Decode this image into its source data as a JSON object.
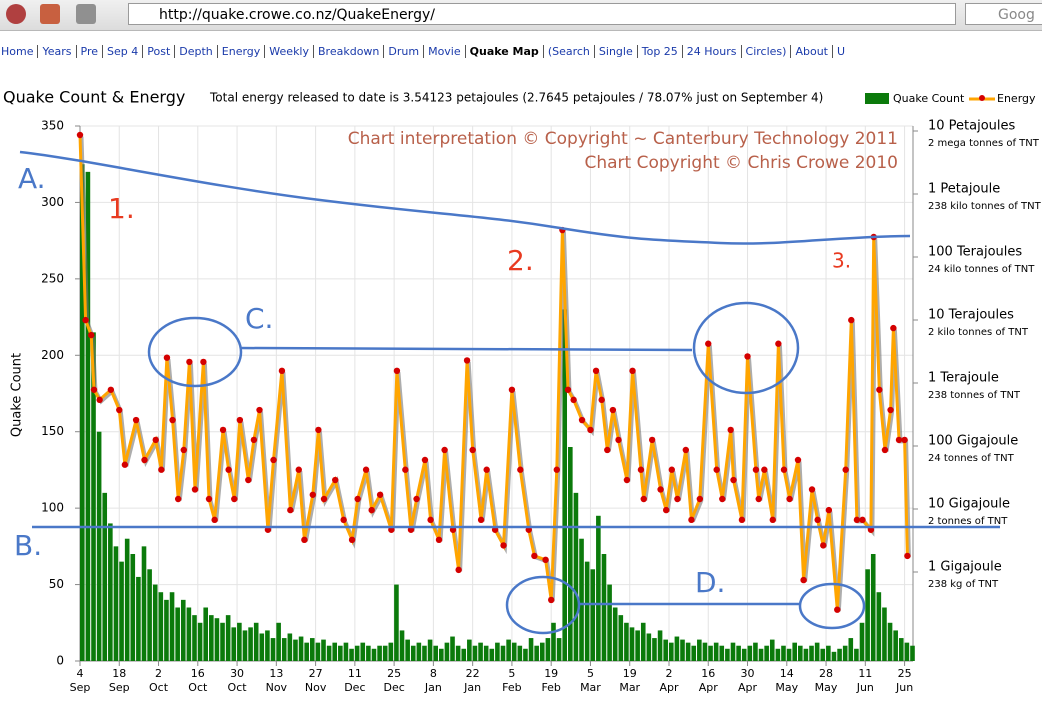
{
  "browser": {
    "url": "http://quake.crowe.co.nz/QuakeEnergy/",
    "search": "Goog",
    "nav": [
      "Home",
      "Years",
      "Pre",
      "Sep 4",
      "Post",
      "Depth",
      "Energy",
      "Weekly",
      "Breakdown",
      "Drum",
      "Movie",
      "Quake Map",
      "(Search",
      "Single",
      "Top 25",
      "24 Hours",
      "Circles)",
      "About",
      "U"
    ]
  },
  "chart_data": {
    "type": "combo",
    "title": "Quake Count & Energy",
    "subtitle": "Total energy released to date is 3.54123 petajoules (2.7645 petajoules / 78.07% just on September 4)",
    "ylabel": "Quake Count",
    "ylim": [
      0,
      350
    ],
    "yticks": [
      0,
      50,
      100,
      150,
      200,
      250,
      300,
      350
    ],
    "y2lim": [
      0.0322,
      10000000
    ],
    "y2log": true,
    "y2ticks": [
      {
        "value": 10000000,
        "label": "10 Petajoules",
        "note": "2 mega tonnes of TNT"
      },
      {
        "value": 1000000,
        "label": "1 Petajoule",
        "note": "238 kilo tonnes of TNT"
      },
      {
        "value": 100000,
        "label": "100 Terajoules",
        "note": "24 kilo tonnes of TNT"
      },
      {
        "value": 10000,
        "label": "10 Terajoules",
        "note": "2 kilo tonnes of TNT"
      },
      {
        "value": 1000,
        "label": "1 Terajoule",
        "note": "238 tonnes of TNT"
      },
      {
        "value": 100,
        "label": "100 Gigajoule",
        "note": "24 tonnes of TNT"
      },
      {
        "value": 10,
        "label": "10 Gigajoule",
        "note": "2 tonnes of TNT"
      },
      {
        "value": 1,
        "label": "1 Gigajoule",
        "note": "238 kg of TNT"
      }
    ],
    "xlim": [
      0,
      297
    ],
    "xticks": [
      {
        "value": 0,
        "label": "4",
        "month": "Sep"
      },
      {
        "value": 14,
        "label": "18",
        "month": "Sep"
      },
      {
        "value": 28,
        "label": "2",
        "month": "Oct"
      },
      {
        "value": 42,
        "label": "16",
        "month": "Oct"
      },
      {
        "value": 56,
        "label": "30",
        "month": "Oct"
      },
      {
        "value": 70,
        "label": "13",
        "month": "Nov"
      },
      {
        "value": 84,
        "label": "27",
        "month": "Nov"
      },
      {
        "value": 98,
        "label": "11",
        "month": "Dec"
      },
      {
        "value": 112,
        "label": "25",
        "month": "Dec"
      },
      {
        "value": 126,
        "label": "8",
        "month": "Jan"
      },
      {
        "value": 140,
        "label": "22",
        "month": "Jan"
      },
      {
        "value": 154,
        "label": "5",
        "month": "Feb"
      },
      {
        "value": 168,
        "label": "19",
        "month": "Feb"
      },
      {
        "value": 182,
        "label": "5",
        "month": "Mar"
      },
      {
        "value": 196,
        "label": "19",
        "month": "Mar"
      },
      {
        "value": 210,
        "label": "2",
        "month": "Apr"
      },
      {
        "value": 224,
        "label": "16",
        "month": "Apr"
      },
      {
        "value": 238,
        "label": "30",
        "month": "Apr"
      },
      {
        "value": 252,
        "label": "14",
        "month": "May"
      },
      {
        "value": 266,
        "label": "28",
        "month": "May"
      },
      {
        "value": 280,
        "label": "11",
        "month": "Jun"
      },
      {
        "value": 294,
        "label": "25",
        "month": "Jun"
      }
    ],
    "grid": true,
    "legend": "top-right",
    "series": [
      {
        "name": "Quake Count",
        "type": "bar",
        "color": "#0b7a0b",
        "x": [
          0,
          2,
          4,
          6,
          8,
          10,
          12,
          14,
          16,
          18,
          20,
          22,
          24,
          26,
          28,
          30,
          32,
          34,
          36,
          38,
          40,
          42,
          44,
          46,
          48,
          50,
          52,
          54,
          56,
          58,
          60,
          62,
          64,
          66,
          68,
          70,
          72,
          74,
          76,
          78,
          80,
          82,
          84,
          86,
          88,
          90,
          92,
          94,
          96,
          98,
          100,
          102,
          104,
          106,
          108,
          110,
          112,
          114,
          116,
          118,
          120,
          122,
          124,
          126,
          128,
          130,
          132,
          134,
          136,
          138,
          140,
          142,
          144,
          146,
          148,
          150,
          152,
          154,
          156,
          158,
          160,
          162,
          164,
          166,
          168,
          170,
          172,
          174,
          176,
          178,
          180,
          182,
          184,
          186,
          188,
          190,
          192,
          194,
          196,
          198,
          200,
          202,
          204,
          206,
          208,
          210,
          212,
          214,
          216,
          218,
          220,
          222,
          224,
          226,
          228,
          230,
          232,
          234,
          236,
          238,
          240,
          242,
          244,
          246,
          248,
          250,
          252,
          254,
          256,
          258,
          260,
          262,
          264,
          266,
          268,
          270,
          272,
          274,
          276,
          278,
          280,
          282,
          284,
          286,
          288,
          290,
          292,
          294,
          296
        ],
        "values": [
          325,
          320,
          215,
          150,
          110,
          90,
          75,
          65,
          80,
          70,
          55,
          75,
          60,
          50,
          45,
          40,
          45,
          35,
          40,
          35,
          30,
          25,
          35,
          30,
          28,
          25,
          30,
          22,
          25,
          20,
          22,
          25,
          18,
          20,
          15,
          25,
          15,
          18,
          14,
          16,
          12,
          15,
          12,
          14,
          10,
          12,
          10,
          12,
          8,
          10,
          12,
          10,
          8,
          10,
          10,
          12,
          50,
          20,
          14,
          10,
          12,
          10,
          14,
          10,
          8,
          12,
          16,
          10,
          8,
          14,
          10,
          12,
          10,
          8,
          12,
          10,
          14,
          12,
          10,
          8,
          15,
          10,
          12,
          15,
          25,
          15,
          230,
          140,
          110,
          80,
          65,
          60,
          95,
          70,
          50,
          35,
          30,
          25,
          22,
          20,
          25,
          18,
          15,
          20,
          14,
          12,
          16,
          14,
          12,
          10,
          14,
          12,
          10,
          12,
          10,
          8,
          12,
          10,
          8,
          10,
          12,
          8,
          10,
          14,
          8,
          10,
          8,
          12,
          10,
          8,
          10,
          12,
          8,
          10,
          6,
          8,
          10,
          15,
          8,
          25,
          60,
          70,
          45,
          35,
          25,
          20,
          15,
          12,
          10
        ]
      },
      {
        "name": "Energy",
        "type": "line",
        "axis": "y2",
        "color": "#ffa500",
        "marker_color": "#d40000",
        "x": [
          0,
          2,
          4,
          5,
          7,
          11,
          14,
          16,
          20,
          23,
          27,
          29,
          31,
          33,
          35,
          37,
          39,
          41,
          44,
          46,
          48,
          51,
          53,
          55,
          57,
          60,
          62,
          64,
          67,
          69,
          72,
          75,
          78,
          80,
          83,
          85,
          87,
          91,
          94,
          97,
          99,
          102,
          104,
          107,
          111,
          113,
          116,
          118,
          120,
          123,
          125,
          128,
          130,
          133,
          135,
          138,
          140,
          143,
          145,
          148,
          151,
          154,
          157,
          160,
          162,
          166,
          168,
          170,
          172,
          174,
          176,
          179,
          182,
          184,
          186,
          188,
          190,
          192,
          195,
          197,
          200,
          201,
          204,
          207,
          209,
          211,
          213,
          216,
          218,
          221,
          224,
          227,
          229,
          232,
          233,
          236,
          238,
          241,
          242,
          244,
          247,
          249,
          251,
          253,
          256,
          258,
          261,
          263,
          265,
          267,
          270,
          273,
          275,
          277,
          279,
          282,
          283,
          285,
          287,
          289,
          290,
          292,
          294,
          295
        ],
        "values": [
          7200000,
          8300,
          4800,
          650,
          450,
          650,
          310,
          42,
          215,
          50,
          104,
          35,
          2100,
          215,
          12,
          72,
          1800,
          17,
          1800,
          12,
          5.6,
          150,
          35,
          12,
          215,
          24,
          104,
          310,
          3.9,
          50,
          1300,
          8,
          35,
          2.7,
          14,
          150,
          12,
          24,
          5.6,
          2.7,
          12,
          35,
          8,
          14,
          3.9,
          1300,
          35,
          3.9,
          12,
          50,
          5.6,
          2.7,
          72,
          3.9,
          0.9,
          1900,
          72,
          5.6,
          35,
          3.9,
          2.2,
          650,
          35,
          3.9,
          1.5,
          1.3,
          0.3,
          35,
          223000,
          650,
          450,
          215,
          150,
          1300,
          450,
          72,
          310,
          104,
          24,
          1300,
          35,
          12,
          104,
          17,
          8,
          35,
          12,
          72,
          5.6,
          12,
          3500,
          35,
          12,
          150,
          24,
          5.6,
          2200,
          35,
          12,
          35,
          5.6,
          3500,
          35,
          12,
          50,
          0.62,
          17,
          5.6,
          2.2,
          8,
          0.21,
          35,
          8300,
          5.6,
          5.6,
          3.9,
          173000,
          650,
          72,
          310,
          6200,
          104,
          104,
          1.5
        ]
      }
    ],
    "annotations": [
      "Chart interpretation © Copyright ~ Canterbury Technology 2011",
      "Chart Copyright © Chris Crowe 2010",
      "A.",
      "B.",
      "C.",
      "D.",
      "1.",
      "2.",
      "3."
    ]
  }
}
